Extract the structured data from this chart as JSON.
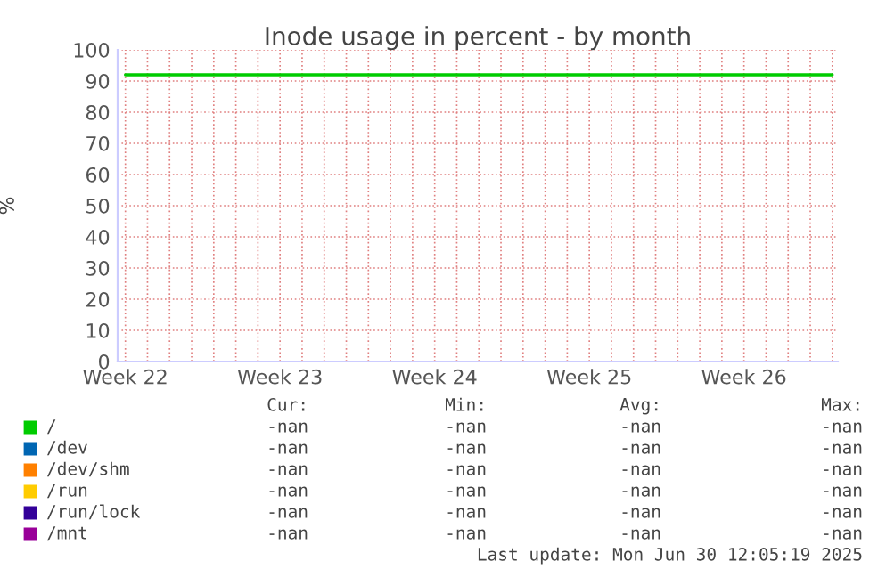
{
  "chart_data": {
    "type": "line",
    "title": "Inode usage in percent - by month",
    "ylabel": "%",
    "categories": [
      "Week 22",
      null,
      null,
      null,
      null,
      null,
      null,
      "Week 23",
      null,
      null,
      null,
      null,
      null,
      null,
      "Week 24",
      null,
      null,
      null,
      null,
      null,
      null,
      "Week 25",
      null,
      null,
      null,
      null,
      null,
      null,
      "Week 26",
      null,
      null,
      null,
      null
    ],
    "ylim": [
      0,
      100
    ],
    "yticks": [
      0,
      10,
      20,
      30,
      40,
      50,
      60,
      70,
      80,
      90,
      100
    ],
    "grid": true,
    "legend": "bottom",
    "marker": "none",
    "line_style": "solid",
    "series": [
      {
        "name": "/",
        "color": "#00cc00",
        "values": [
          92,
          92,
          92,
          92,
          92,
          92,
          92,
          92,
          92,
          92,
          92,
          92,
          92,
          92,
          92,
          92,
          92,
          92,
          92,
          92,
          92,
          92,
          92,
          92,
          92,
          92,
          92,
          92,
          92,
          92,
          92,
          92,
          92
        ]
      },
      {
        "name": "/dev",
        "color": "#0066b3",
        "values": [
          null,
          null,
          null,
          null,
          null,
          null,
          null,
          null,
          null,
          null,
          null,
          null,
          null,
          null,
          null,
          null,
          null,
          null,
          null,
          null,
          null,
          null,
          null,
          null,
          null,
          null,
          null,
          null,
          null,
          null,
          null,
          null,
          null
        ]
      },
      {
        "name": "/dev/shm",
        "color": "#ff8000",
        "values": [
          null,
          null,
          null,
          null,
          null,
          null,
          null,
          null,
          null,
          null,
          null,
          null,
          null,
          null,
          null,
          null,
          null,
          null,
          null,
          null,
          null,
          null,
          null,
          null,
          null,
          null,
          null,
          null,
          null,
          null,
          null,
          null,
          null
        ]
      },
      {
        "name": "/run",
        "color": "#ffcc00",
        "values": [
          null,
          null,
          null,
          null,
          null,
          null,
          null,
          null,
          null,
          null,
          null,
          null,
          null,
          null,
          null,
          null,
          null,
          null,
          null,
          null,
          null,
          null,
          null,
          null,
          null,
          null,
          null,
          null,
          null,
          null,
          null,
          null,
          null
        ]
      },
      {
        "name": "/run/lock",
        "color": "#330099",
        "values": [
          null,
          null,
          null,
          null,
          null,
          null,
          null,
          null,
          null,
          null,
          null,
          null,
          null,
          null,
          null,
          null,
          null,
          null,
          null,
          null,
          null,
          null,
          null,
          null,
          null,
          null,
          null,
          null,
          null,
          null,
          null,
          null,
          null
        ]
      },
      {
        "name": "/mnt",
        "color": "#990099",
        "values": [
          null,
          null,
          null,
          null,
          null,
          null,
          null,
          null,
          null,
          null,
          null,
          null,
          null,
          null,
          null,
          null,
          null,
          null,
          null,
          null,
          null,
          null,
          null,
          null,
          null,
          null,
          null,
          null,
          null,
          null,
          null,
          null,
          null
        ]
      }
    ],
    "annotations": [
      "Cur:",
      "Min:",
      "Avg:",
      "Max:",
      "-nan",
      "-nan",
      "-nan",
      "-nan",
      "-nan",
      "-nan",
      "-nan",
      "-nan",
      "-nan",
      "-nan",
      "-nan",
      "-nan",
      "-nan",
      "-nan",
      "-nan",
      "-nan",
      "-nan",
      "-nan",
      "-nan",
      "-nan",
      "-nan",
      "-nan",
      "-nan",
      "-nan",
      "Last update: Mon Jun 30 12:05:19 2025"
    ]
  }
}
